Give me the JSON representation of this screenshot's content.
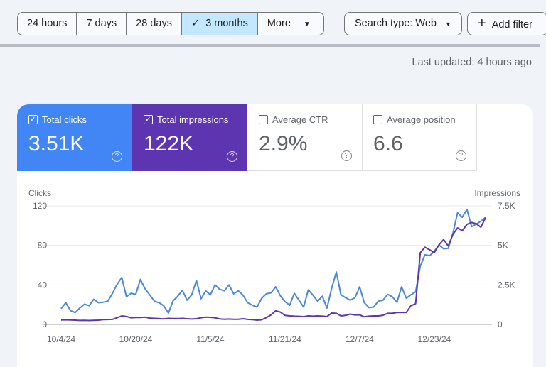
{
  "toolbar": {
    "ranges": [
      {
        "label": "24 hours"
      },
      {
        "label": "7 days"
      },
      {
        "label": "28 days"
      },
      {
        "label": "3 months",
        "selected": true,
        "icon": "check-icon"
      },
      {
        "label": "More",
        "icon": "dropdown-arrow-icon"
      }
    ],
    "search_type": "Search type: Web",
    "add_filter": "Add filter"
  },
  "last_updated": "Last updated: 4 hours ago",
  "metrics": [
    {
      "label": "Total clicks",
      "value": "3.51K",
      "checked": true,
      "color": "#4285f4"
    },
    {
      "label": "Total impressions",
      "value": "122K",
      "checked": true,
      "color": "#5e35b1"
    },
    {
      "label": "Average CTR",
      "value": "2.9%",
      "checked": false
    },
    {
      "label": "Average position",
      "value": "6.6",
      "checked": false
    }
  ],
  "chart_data": {
    "type": "line",
    "left_axis": {
      "label": "Clicks",
      "ticks": [
        "0",
        "40",
        "80",
        "120"
      ],
      "range": [
        0,
        120
      ]
    },
    "right_axis": {
      "label": "Impressions",
      "ticks": [
        "0",
        "2.5K",
        "5K",
        "7.5K"
      ],
      "range": [
        0,
        7500
      ]
    },
    "x_ticks": [
      "10/4/24",
      "10/20/24",
      "11/5/24",
      "11/21/24",
      "12/7/24",
      "12/23/24"
    ],
    "x": [
      "10/4/24",
      "10/5/24",
      "10/6/24",
      "10/7/24",
      "10/8/24",
      "10/9/24",
      "10/10/24",
      "10/11/24",
      "10/12/24",
      "10/13/24",
      "10/14/24",
      "10/15/24",
      "10/16/24",
      "10/17/24",
      "10/18/24",
      "10/19/24",
      "10/20/24",
      "10/21/24",
      "10/22/24",
      "10/23/24",
      "10/24/24",
      "10/25/24",
      "10/26/24",
      "10/27/24",
      "10/28/24",
      "10/29/24",
      "10/30/24",
      "10/31/24",
      "11/1/24",
      "11/2/24",
      "11/3/24",
      "11/4/24",
      "11/5/24",
      "11/6/24",
      "11/7/24",
      "11/8/24",
      "11/9/24",
      "11/10/24",
      "11/11/24",
      "11/12/24",
      "11/13/24",
      "11/14/24",
      "11/15/24",
      "11/16/24",
      "11/17/24",
      "11/18/24",
      "11/19/24",
      "11/20/24",
      "11/21/24",
      "11/22/24",
      "11/23/24",
      "11/24/24",
      "11/25/24",
      "11/26/24",
      "11/27/24",
      "11/28/24",
      "11/29/24",
      "11/30/24",
      "12/1/24",
      "12/2/24",
      "12/3/24",
      "12/4/24",
      "12/5/24",
      "12/6/24",
      "12/7/24",
      "12/8/24",
      "12/9/24",
      "12/10/24",
      "12/11/24",
      "12/12/24",
      "12/13/24",
      "12/14/24",
      "12/15/24",
      "12/16/24",
      "12/17/24",
      "12/18/24",
      "12/19/24",
      "12/20/24",
      "12/21/24",
      "12/22/24",
      "12/23/24",
      "12/24/24",
      "12/25/24",
      "12/26/24",
      "12/27/24",
      "12/28/24",
      "12/29/24",
      "12/30/24",
      "12/31/24",
      "1/1/25",
      "1/2/25",
      "1/3/25"
    ],
    "grid": true,
    "series": [
      {
        "name": "Clicks",
        "axis": "left",
        "color": "#4a88d8",
        "values": [
          16,
          22,
          14,
          12,
          16.5,
          20.5,
          19,
          25.5,
          22,
          22.5,
          23.5,
          31.5,
          40.5,
          47.5,
          28,
          31.5,
          30.5,
          45.5,
          36,
          30,
          23.5,
          22,
          19,
          11.5,
          24,
          28.5,
          34.5,
          24.5,
          30,
          44.5,
          26,
          34,
          30,
          40,
          35.5,
          34,
          40,
          31,
          34,
          29.5,
          22,
          19.5,
          17.5,
          26.5,
          31,
          32,
          38,
          29,
          23,
          19.5,
          31.5,
          24.5,
          17.5,
          35,
          29.5,
          23.5,
          28.5,
          16.5,
          36.5,
          53,
          30,
          27,
          24.5,
          27,
          38,
          22,
          17,
          17.5,
          23.5,
          24.5,
          30.5,
          28,
          22.5,
          38,
          26.5,
          30,
          33,
          59,
          70.5,
          69.5,
          74,
          80.5,
          76.5,
          77,
          92.5,
          113,
          108.5,
          116.5,
          99,
          101.5,
          104.5,
          108.5
        ]
      },
      {
        "name": "Impressions",
        "axis": "right",
        "color": "#5e35b1",
        "values": [
          283,
          290,
          280,
          270,
          250,
          255,
          245,
          260,
          270,
          300,
          310,
          320,
          420,
          540,
          500,
          420,
          440,
          440,
          460,
          400,
          380,
          370,
          350,
          380,
          370,
          370,
          380,
          360,
          340,
          360,
          420,
          460,
          450,
          420,
          350,
          330,
          340,
          330,
          330,
          360,
          320,
          300,
          270,
          290,
          430,
          600,
          860,
          780,
          570,
          540,
          520,
          510,
          490,
          540,
          520,
          540,
          520,
          500,
          720,
          700,
          540,
          580,
          650,
          600,
          600,
          480,
          520,
          540,
          540,
          580,
          700,
          700,
          760,
          760,
          760,
          1180,
          1310,
          4535,
          4880,
          4720,
          4535,
          5030,
          5370,
          4960,
          5700,
          6110,
          5930,
          6330,
          6450,
          6370,
          6150,
          6750
        ]
      }
    ]
  }
}
